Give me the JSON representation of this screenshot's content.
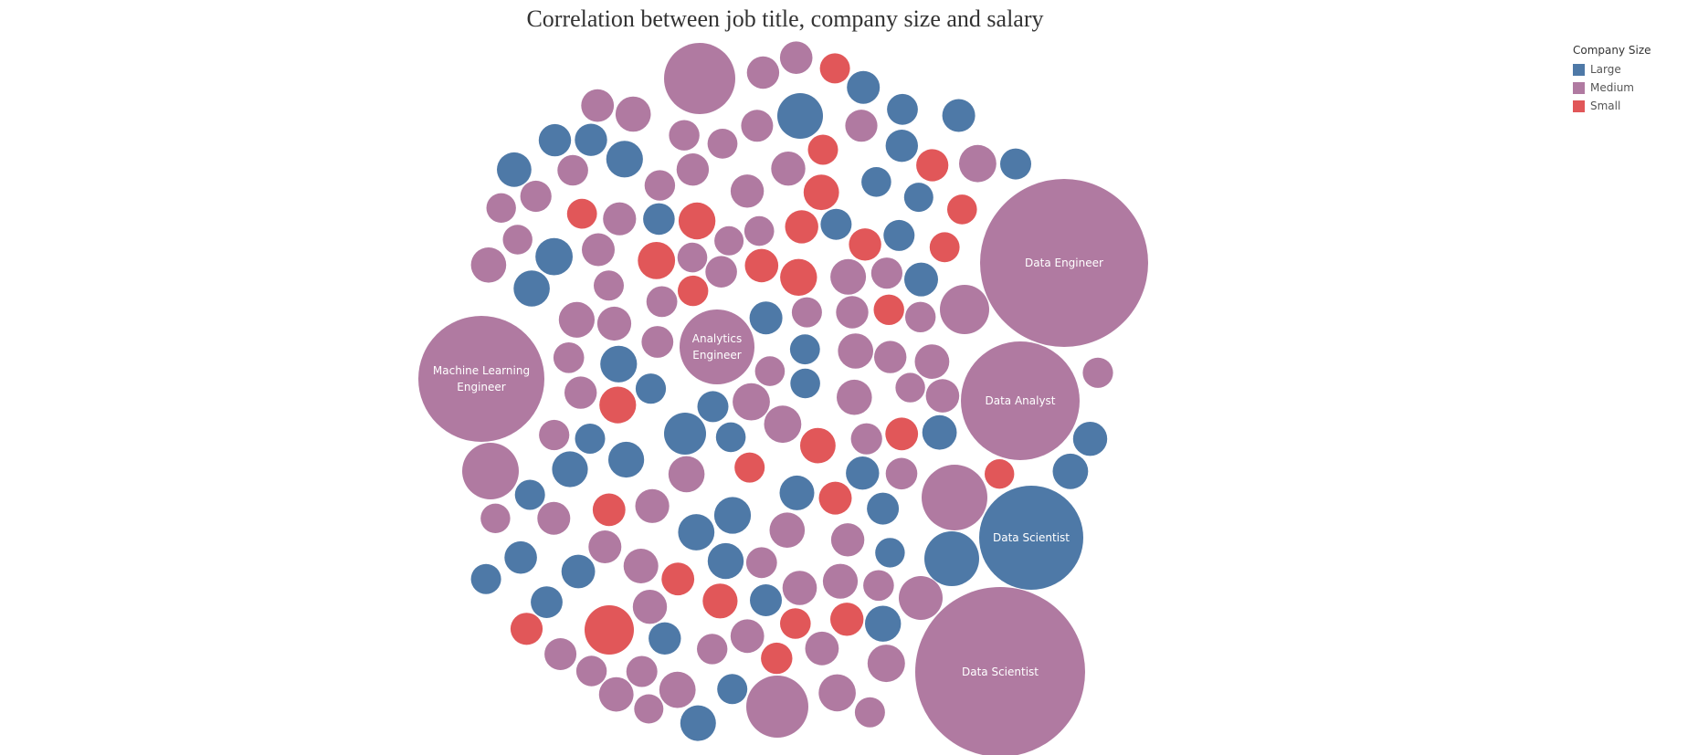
{
  "chart_data": {
    "type": "bubble",
    "title": "Correlation between job title, company size and salary",
    "legend": {
      "title": "Company Size",
      "placement": "top-right",
      "items": [
        {
          "name": "Large",
          "color": "#4e79a7"
        },
        {
          "name": "Medium",
          "color": "#b07aa1"
        },
        {
          "name": "Small",
          "color": "#e15759"
        }
      ]
    },
    "labeled_bubbles": [
      {
        "label_lines": [
          "Data Engineer"
        ],
        "company_size": "Medium"
      },
      {
        "label_lines": [
          "Data Scientist"
        ],
        "company_size": "Medium"
      },
      {
        "label_lines": [
          "Data Scientist"
        ],
        "company_size": "Large"
      },
      {
        "label_lines": [
          "Data Analyst"
        ],
        "company_size": "Medium"
      },
      {
        "label_lines": [
          "Machine Learning",
          "Engineer"
        ],
        "company_size": "Medium"
      },
      {
        "label_lines": [
          "Analytics",
          "Engineer"
        ],
        "company_size": "Medium"
      }
    ]
  }
}
